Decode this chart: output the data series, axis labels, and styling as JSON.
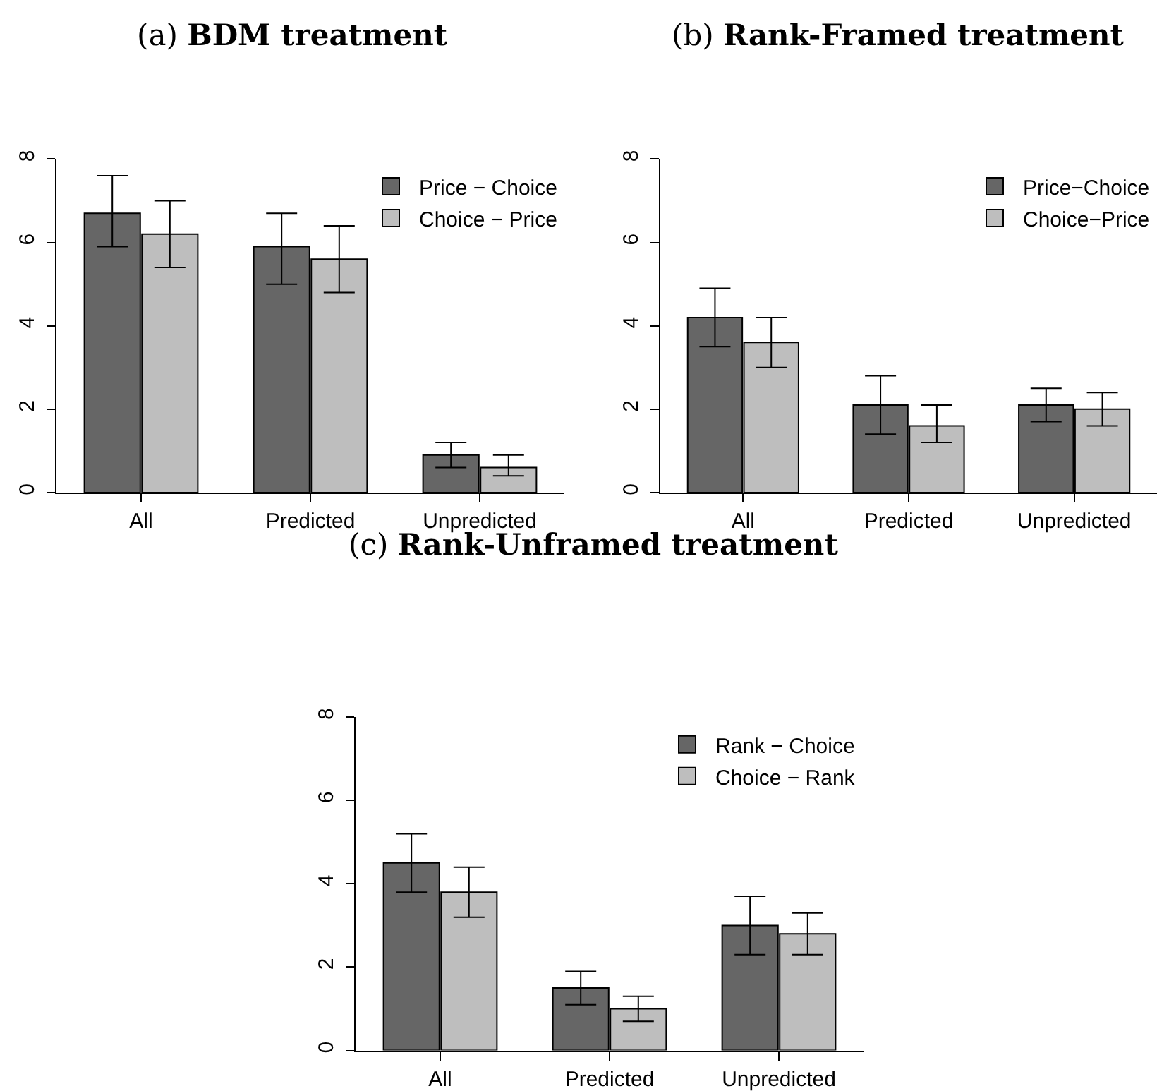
{
  "chart_data": [
    {
      "type": "bar",
      "title": "(a) BDM treatment",
      "categories": [
        "All",
        "Predicted",
        "Unpredicted"
      ],
      "series": [
        {
          "name": "Price − Choice",
          "color": "#666666",
          "values": [
            6.7,
            5.9,
            0.9
          ],
          "errors": [
            [
              5.9,
              7.6
            ],
            [
              5.0,
              6.7
            ],
            [
              0.6,
              1.2
            ]
          ]
        },
        {
          "name": "Choice − Price",
          "color": "#bebebe",
          "values": [
            6.2,
            5.6,
            0.6
          ],
          "errors": [
            [
              5.4,
              7.0
            ],
            [
              4.8,
              6.4
            ],
            [
              0.4,
              0.9
            ]
          ]
        }
      ],
      "ylim": [
        0,
        8
      ],
      "yticks": [
        0,
        2,
        4,
        6,
        8
      ],
      "legend": "top right"
    },
    {
      "type": "bar",
      "title": "(b) Rank-Framed treatment",
      "categories": [
        "All",
        "Predicted",
        "Unpredicted"
      ],
      "series": [
        {
          "name": "Price−Choice",
          "color": "#666666",
          "values": [
            4.2,
            2.1,
            2.1
          ],
          "errors": [
            [
              3.5,
              4.9
            ],
            [
              1.4,
              2.8
            ],
            [
              1.7,
              2.5
            ]
          ]
        },
        {
          "name": "Choice−Price",
          "color": "#bebebe",
          "values": [
            3.6,
            1.6,
            2.0
          ],
          "errors": [
            [
              3.0,
              4.2
            ],
            [
              1.2,
              2.1
            ],
            [
              1.6,
              2.4
            ]
          ]
        }
      ],
      "ylim": [
        0,
        8
      ],
      "yticks": [
        0,
        2,
        4,
        6,
        8
      ],
      "legend": "top right"
    },
    {
      "type": "bar",
      "title": "(c) Rank-Unframed treatment",
      "categories": [
        "All",
        "Predicted",
        "Unpredicted"
      ],
      "series": [
        {
          "name": "Rank − Choice",
          "color": "#666666",
          "values": [
            4.5,
            1.5,
            3.0
          ],
          "errors": [
            [
              3.8,
              5.2
            ],
            [
              1.1,
              1.9
            ],
            [
              2.3,
              3.7
            ]
          ]
        },
        {
          "name": "Choice − Rank",
          "color": "#bebebe",
          "values": [
            3.8,
            1.0,
            2.8
          ],
          "errors": [
            [
              3.2,
              4.4
            ],
            [
              0.7,
              1.3
            ],
            [
              2.3,
              3.3
            ]
          ]
        }
      ],
      "ylim": [
        0,
        8
      ],
      "yticks": [
        0,
        2,
        4,
        6,
        8
      ],
      "legend": "top right"
    }
  ]
}
